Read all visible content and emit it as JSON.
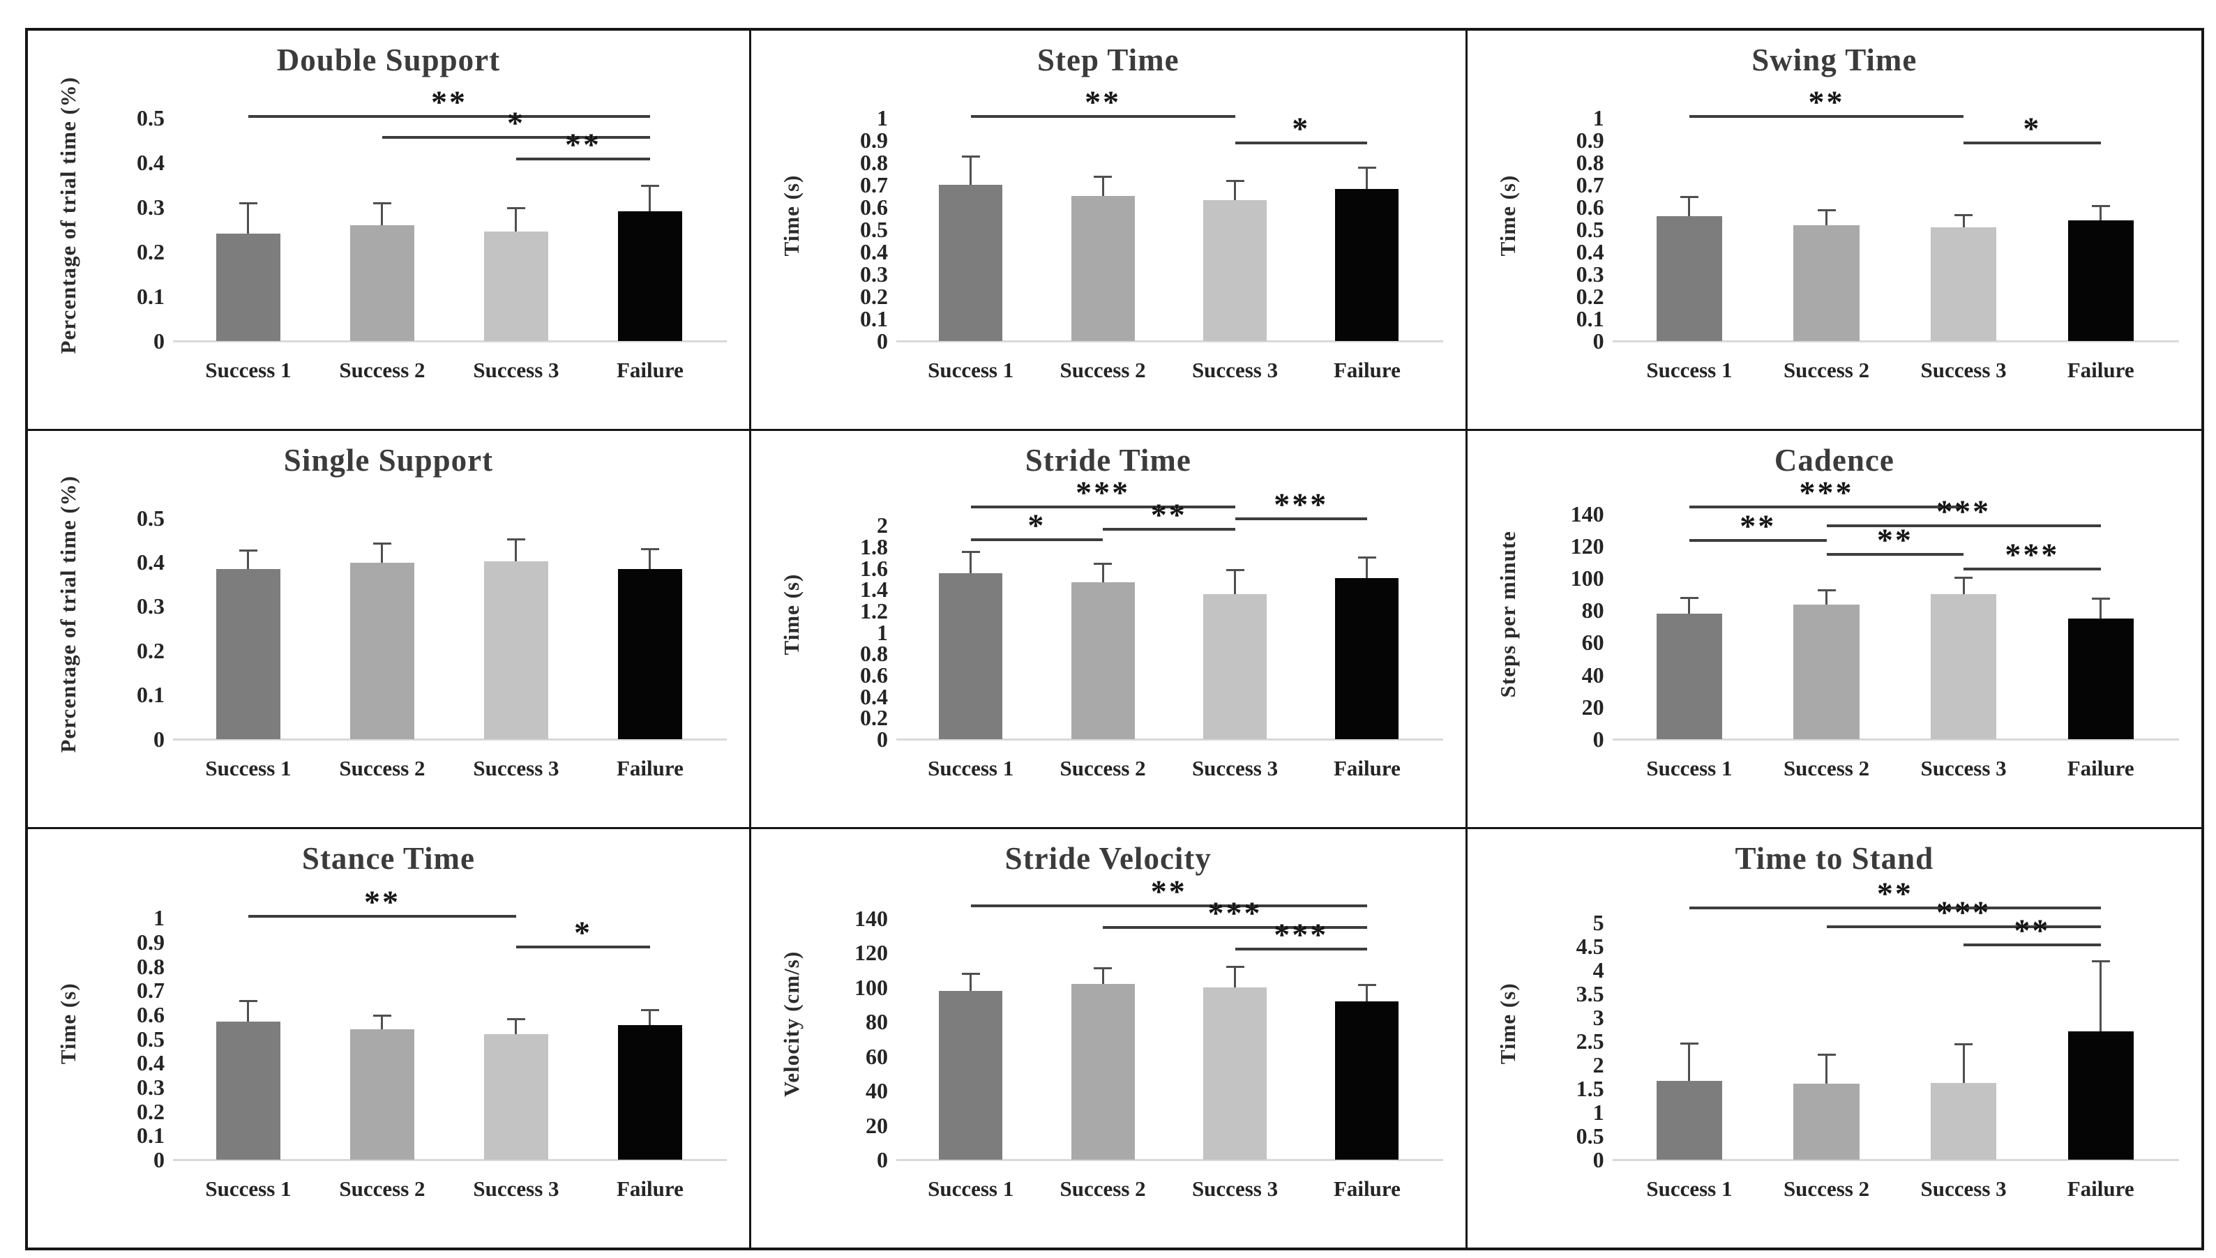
{
  "figure": {
    "layout": "3x3 grid of bar charts (gait parameters: successes vs failure)",
    "bar_palette": [
      "#7d7d7d",
      "#a9a9a9",
      "#c3c3c3",
      "#050505"
    ],
    "series_names": [
      "Success 1",
      "Success 2",
      "Success 3",
      "Failure"
    ],
    "frame_border_color": "#161616",
    "axis_line_color": "#d9d9d9",
    "error_bar_color": "#4f4f4f",
    "significance_color": "#3d3d3d"
  },
  "chart_data": [
    {
      "type": "bar",
      "title": "Double Support",
      "xlabel": "",
      "ylabel": "Percentage of trial time (%)",
      "categories": [
        "Success 1",
        "Success 2",
        "Success 3",
        "Failure"
      ],
      "values": [
        0.24,
        0.26,
        0.245,
        0.29
      ],
      "errors_upper": [
        0.31,
        0.31,
        0.3,
        0.35
      ],
      "ylim": [
        0,
        0.56
      ],
      "yticks": [
        0,
        0.1,
        0.2,
        0.3,
        0.4,
        0.5
      ],
      "ytick_labels": [
        "0",
        "0.1",
        "0.2",
        "0.3",
        "0.4",
        "0.5"
      ],
      "grid": false,
      "legend": "none",
      "significance": [
        {
          "from": 0,
          "to": 3,
          "label": "**",
          "y": 0.5
        },
        {
          "from": 1,
          "to": 3,
          "label": "*",
          "y": 0.452
        },
        {
          "from": 2,
          "to": 3,
          "label": "**",
          "y": 0.405
        }
      ]
    },
    {
      "type": "bar",
      "title": "Step Time",
      "xlabel": "",
      "ylabel": "Time (s)",
      "categories": [
        "Success 1",
        "Success 2",
        "Success 3",
        "Failure"
      ],
      "values": [
        0.7,
        0.65,
        0.63,
        0.68
      ],
      "errors_upper": [
        0.83,
        0.74,
        0.72,
        0.78
      ],
      "ylim": [
        0,
        1.12
      ],
      "yticks": [
        0,
        0.1,
        0.2,
        0.3,
        0.4,
        0.5,
        0.6,
        0.7,
        0.8,
        0.9,
        1
      ],
      "ytick_labels": [
        "0",
        "0.1",
        "0.2",
        "0.3",
        "0.4",
        "0.5",
        "0.6",
        "0.7",
        "0.8",
        "0.9",
        "1"
      ],
      "grid": false,
      "legend": "none",
      "significance": [
        {
          "from": 0,
          "to": 2,
          "label": "**",
          "y": 1.0
        },
        {
          "from": 2,
          "to": 3,
          "label": "*",
          "y": 0.88
        }
      ]
    },
    {
      "type": "bar",
      "title": "Swing Time",
      "xlabel": "",
      "ylabel": "Time (s)",
      "categories": [
        "Success 1",
        "Success 2",
        "Success 3",
        "Failure"
      ],
      "values": [
        0.56,
        0.52,
        0.51,
        0.54
      ],
      "errors_upper": [
        0.65,
        0.59,
        0.57,
        0.61
      ],
      "ylim": [
        0,
        1.12
      ],
      "yticks": [
        0,
        0.1,
        0.2,
        0.3,
        0.4,
        0.5,
        0.6,
        0.7,
        0.8,
        0.9,
        1
      ],
      "ytick_labels": [
        "0",
        "0.1",
        "0.2",
        "0.3",
        "0.4",
        "0.5",
        "0.6",
        "0.7",
        "0.8",
        "0.9",
        "1"
      ],
      "grid": false,
      "legend": "none",
      "significance": [
        {
          "from": 0,
          "to": 2,
          "label": "**",
          "y": 1.0
        },
        {
          "from": 2,
          "to": 3,
          "label": "*",
          "y": 0.88
        }
      ]
    },
    {
      "type": "bar",
      "title": "Single Support",
      "xlabel": "",
      "ylabel": "Percentage of trial time (%)",
      "categories": [
        "Success 1",
        "Success 2",
        "Success 3",
        "Failure"
      ],
      "values": [
        0.384,
        0.398,
        0.401,
        0.385
      ],
      "errors_upper": [
        0.429,
        0.444,
        0.453,
        0.432
      ],
      "ylim": [
        0,
        0.56
      ],
      "yticks": [
        0,
        0.1,
        0.2,
        0.3,
        0.4,
        0.5
      ],
      "ytick_labels": [
        "0",
        "0.1",
        "0.2",
        "0.3",
        "0.4",
        "0.5"
      ],
      "grid": false,
      "legend": "none",
      "significance": []
    },
    {
      "type": "bar",
      "title": "Stride Time",
      "xlabel": "",
      "ylabel": "Time (s)",
      "categories": [
        "Success 1",
        "Success 2",
        "Success 3",
        "Failure"
      ],
      "values": [
        1.55,
        1.47,
        1.36,
        1.51
      ],
      "errors_upper": [
        1.76,
        1.65,
        1.59,
        1.71
      ],
      "ylim": [
        0,
        2.32
      ],
      "yticks": [
        0,
        0.2,
        0.4,
        0.6,
        0.8,
        1,
        1.2,
        1.4,
        1.6,
        1.8,
        2
      ],
      "ytick_labels": [
        "0",
        "0.2",
        "0.4",
        "0.6",
        "0.8",
        "1",
        "1.2",
        "1.4",
        "1.6",
        "1.8",
        "2"
      ],
      "grid": false,
      "legend": "none",
      "significance": [
        {
          "from": 0,
          "to": 2,
          "label": "***",
          "y": 2.16
        },
        {
          "from": 2,
          "to": 3,
          "label": "***",
          "y": 2.05
        },
        {
          "from": 1,
          "to": 2,
          "label": "**",
          "y": 1.95
        },
        {
          "from": 0,
          "to": 1,
          "label": "*",
          "y": 1.85
        }
      ]
    },
    {
      "type": "bar",
      "title": "Cadence",
      "xlabel": "",
      "ylabel": "Steps per minute",
      "categories": [
        "Success 1",
        "Success 2",
        "Success 3",
        "Failure"
      ],
      "values": [
        78,
        83.5,
        90,
        75
      ],
      "errors_upper": [
        88.5,
        93,
        101,
        88
      ],
      "ylim": [
        0,
        154
      ],
      "yticks": [
        0,
        20,
        40,
        60,
        80,
        100,
        120,
        140
      ],
      "ytick_labels": [
        "0",
        "20",
        "40",
        "60",
        "80",
        "100",
        "120",
        "140"
      ],
      "grid": false,
      "legend": "none",
      "significance": [
        {
          "from": 0,
          "to": 2,
          "label": "***",
          "y": 143.5
        },
        {
          "from": 1,
          "to": 3,
          "label": "***",
          "y": 131.5
        },
        {
          "from": 0,
          "to": 1,
          "label": "**",
          "y": 122.5
        },
        {
          "from": 1,
          "to": 2,
          "label": "**",
          "y": 114
        },
        {
          "from": 2,
          "to": 3,
          "label": "***",
          "y": 105
        }
      ]
    },
    {
      "type": "bar",
      "title": "Stance Time",
      "xlabel": "",
      "ylabel": "Time (s)",
      "categories": [
        "Success 1",
        "Success 2",
        "Success 3",
        "Failure"
      ],
      "values": [
        0.57,
        0.54,
        0.52,
        0.556
      ],
      "errors_upper": [
        0.66,
        0.6,
        0.585,
        0.624
      ],
      "ylim": [
        0,
        1.12
      ],
      "yticks": [
        0,
        0.1,
        0.2,
        0.3,
        0.4,
        0.5,
        0.6,
        0.7,
        0.8,
        0.9,
        1
      ],
      "ytick_labels": [
        "0",
        "0.1",
        "0.2",
        "0.3",
        "0.4",
        "0.5",
        "0.6",
        "0.7",
        "0.8",
        "0.9",
        "1"
      ],
      "grid": false,
      "legend": "none",
      "significance": [
        {
          "from": 0,
          "to": 2,
          "label": "**",
          "y": 1.0
        },
        {
          "from": 2,
          "to": 3,
          "label": "*",
          "y": 0.875
        }
      ]
    },
    {
      "type": "bar",
      "title": "Stride Velocity",
      "xlabel": "",
      "ylabel": "Velocity (cm/s)",
      "categories": [
        "Success 1",
        "Success 2",
        "Success 3",
        "Failure"
      ],
      "values": [
        98,
        102,
        100,
        92
      ],
      "errors_upper": [
        108.5,
        111.5,
        112.5,
        102
      ],
      "ylim": [
        0,
        157
      ],
      "yticks": [
        0,
        20,
        40,
        60,
        80,
        100,
        120,
        140
      ],
      "ytick_labels": [
        "0",
        "20",
        "40",
        "60",
        "80",
        "100",
        "120",
        "140"
      ],
      "grid": false,
      "legend": "none",
      "significance": [
        {
          "from": 0,
          "to": 3,
          "label": "**",
          "y": 146.5
        },
        {
          "from": 1,
          "to": 3,
          "label": "***",
          "y": 134
        },
        {
          "from": 2,
          "to": 3,
          "label": "***",
          "y": 121.5
        }
      ]
    },
    {
      "type": "bar",
      "title": "Time to Stand",
      "xlabel": "",
      "ylabel": "Time (s)",
      "categories": [
        "Success 1",
        "Success 2",
        "Success 3",
        "Failure"
      ],
      "values": [
        1.66,
        1.6,
        1.62,
        2.7
      ],
      "errors_upper": [
        2.47,
        2.23,
        2.45,
        4.2
      ],
      "ylim": [
        0,
        5.7
      ],
      "yticks": [
        0,
        0.5,
        1,
        1.5,
        2,
        2.5,
        3,
        3.5,
        4,
        4.5,
        5
      ],
      "ytick_labels": [
        "0",
        "0.5",
        "1",
        "1.5",
        "2",
        "2.5",
        "3",
        "3.5",
        "4",
        "4.5",
        "5"
      ],
      "grid": false,
      "legend": "none",
      "significance": [
        {
          "from": 0,
          "to": 3,
          "label": "**",
          "y": 5.27
        },
        {
          "from": 1,
          "to": 3,
          "label": "***",
          "y": 4.88
        },
        {
          "from": 2,
          "to": 3,
          "label": "**",
          "y": 4.5
        }
      ]
    }
  ]
}
